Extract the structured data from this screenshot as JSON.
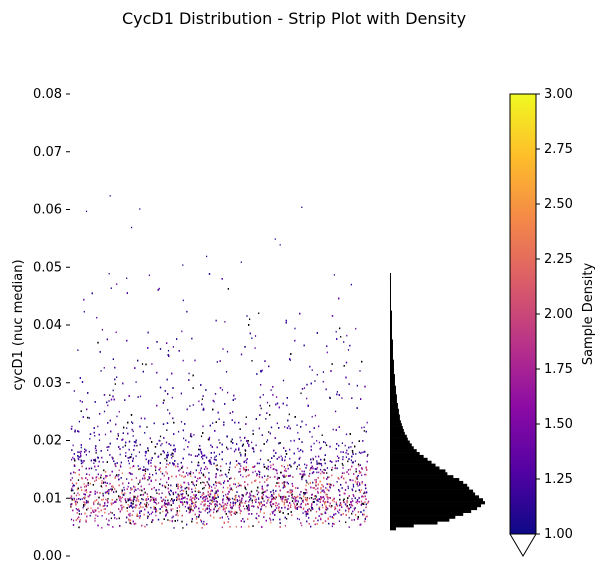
{
  "chart_data": [
    {
      "type": "scatter",
      "title": "CycD1 Distribution - Strip Plot with Density",
      "xlabel": "",
      "ylabel": "cycD1 (nuc median)",
      "ylim": [
        0.0,
        0.08
      ],
      "yticks": [
        "0.00",
        "0.01",
        "0.02",
        "0.03",
        "0.04",
        "0.05",
        "0.06",
        "0.07",
        "0.08"
      ],
      "ytick_values": [
        0.0,
        0.01,
        0.02,
        0.03,
        0.04,
        0.05,
        0.06,
        0.07,
        0.08
      ],
      "point_count_estimate": 5000,
      "y_range_points": [
        0.005,
        0.0625
      ],
      "sparse_high_points": [
        0.0625,
        0.0605,
        0.0598,
        0.0602,
        0.057,
        0.055,
        0.054,
        0.052,
        0.051,
        0.0505,
        0.049,
        0.0488,
        0.0482
      ],
      "grid": false,
      "legend": "none"
    },
    {
      "type": "bar",
      "orientation": "horizontal",
      "bin_width": 0.0005,
      "bin_centers": [
        0.00475,
        0.00525,
        0.00575,
        0.00625,
        0.00675,
        0.00725,
        0.00775,
        0.00825,
        0.00875,
        0.00925,
        0.00975,
        0.01025,
        0.01075,
        0.01125,
        0.01175,
        0.01225,
        0.01275,
        0.01325,
        0.01375,
        0.01425,
        0.01475,
        0.01525,
        0.01575,
        0.01625,
        0.01675,
        0.01725,
        0.01775,
        0.01825,
        0.01875,
        0.01925,
        0.01975,
        0.02025,
        0.02075,
        0.02125,
        0.02175,
        0.02225,
        0.02275,
        0.02325,
        0.02375,
        0.02425,
        0.02475,
        0.02525,
        0.02575,
        0.02625,
        0.02675,
        0.02725,
        0.02775,
        0.02825,
        0.02875,
        0.02925,
        0.02975,
        0.03025,
        0.03075,
        0.03125,
        0.03175,
        0.03225,
        0.03275,
        0.03325,
        0.03375,
        0.03425,
        0.03475,
        0.03525,
        0.03575,
        0.03625,
        0.03675,
        0.03725,
        0.03775,
        0.03825,
        0.03875,
        0.03925,
        0.03975,
        0.04025,
        0.04075,
        0.04125,
        0.04175,
        0.04225,
        0.04275,
        0.04325,
        0.04375,
        0.04425,
        0.04475,
        0.04525,
        0.04575,
        0.04625,
        0.04675,
        0.04725,
        0.04775,
        0.04825,
        0.04875
      ],
      "counts": [
        6,
        24,
        48,
        60,
        66,
        74,
        82,
        88,
        92,
        96,
        94,
        90,
        86,
        84,
        80,
        78,
        74,
        70,
        64,
        58,
        56,
        50,
        46,
        42,
        38,
        34,
        30,
        27,
        24,
        22,
        20,
        18,
        17,
        15,
        14,
        13,
        12,
        11,
        10,
        10,
        9,
        9,
        8,
        8,
        7,
        7,
        7,
        6,
        6,
        6,
        5,
        5,
        5,
        5,
        4,
        4,
        4,
        4,
        4,
        3,
        3,
        3,
        3,
        3,
        3,
        3,
        2,
        2,
        2,
        2,
        2,
        2,
        2,
        2,
        2,
        2,
        1,
        1,
        1,
        1,
        1,
        1,
        1,
        1,
        1,
        1,
        1,
        1,
        1
      ]
    },
    {
      "type": "colorbar",
      "label": "Sample Density",
      "range": [
        1.0,
        3.0
      ],
      "ticks": [
        "1.00",
        "1.25",
        "1.50",
        "1.75",
        "2.00",
        "2.25",
        "2.50",
        "2.75",
        "3.00"
      ],
      "tick_values": [
        1.0,
        1.25,
        1.5,
        1.75,
        2.0,
        2.25,
        2.5,
        2.75,
        3.0
      ],
      "colormap": "plasma",
      "colors": [
        "#0d0887",
        "#5302a3",
        "#8b0aa5",
        "#b83289",
        "#db5c68",
        "#f48849",
        "#febd2a",
        "#f0f921"
      ],
      "extend": "min"
    }
  ]
}
